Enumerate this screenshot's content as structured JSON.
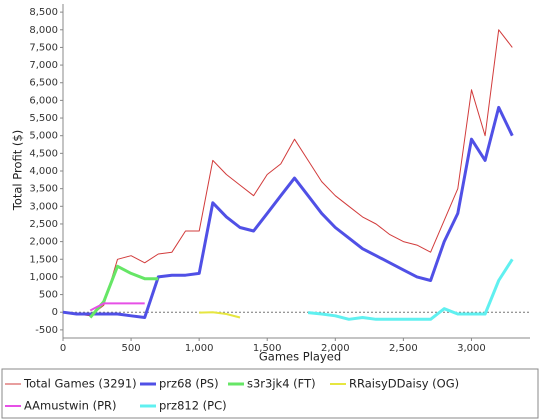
{
  "chart_data": {
    "type": "line",
    "x_label": "Games Played",
    "y_label": "Total Profit ($)",
    "x": [
      0,
      100,
      200,
      300,
      400,
      500,
      600,
      700,
      800,
      900,
      1000,
      1100,
      1200,
      1300,
      1400,
      1500,
      1600,
      1700,
      1800,
      1900,
      2000,
      2100,
      2200,
      2300,
      2400,
      2500,
      2600,
      2700,
      2800,
      2900,
      3000,
      3100,
      3200,
      3300
    ],
    "series": [
      {
        "name": "Total Games (3291)",
        "color": "#d23c3c",
        "line_width": 1,
        "values": [
          0,
          -50,
          -100,
          200,
          1500,
          1600,
          1400,
          1650,
          1700,
          2300,
          2300,
          4300,
          3900,
          3600,
          3300,
          3900,
          4200,
          4900,
          4300,
          3700,
          3300,
          3000,
          2700,
          2500,
          2200,
          2000,
          1900,
          1700,
          2600,
          3500,
          6300,
          5000,
          8000,
          7500
        ]
      },
      {
        "name": "prz68 (PS)",
        "color": "#5050e6",
        "line_width": 3,
        "values": [
          0,
          -50,
          -50,
          -50,
          -50,
          -100,
          -150,
          1000,
          1050,
          1050,
          1100,
          3100,
          2700,
          2400,
          2300,
          2800,
          3300,
          3800,
          3300,
          2800,
          2400,
          2100,
          1800,
          1600,
          1400,
          1200,
          1000,
          900,
          2000,
          2800,
          4900,
          4300,
          5800,
          5000
        ]
      },
      {
        "name": "s3r3jk4 (FT)",
        "color": "#66e666",
        "line_width": 3,
        "values": [
          null,
          null,
          -150,
          300,
          1300,
          1100,
          950,
          950,
          null,
          null,
          null,
          null,
          null,
          null,
          null,
          null,
          null,
          null,
          null,
          null,
          null,
          null,
          null,
          null,
          null,
          null,
          null,
          null,
          null,
          null,
          null,
          null,
          null,
          null
        ]
      },
      {
        "name": "RRaisyDDaisy (OG)",
        "color": "#e6e640",
        "line_width": 2,
        "values": [
          null,
          null,
          null,
          null,
          null,
          null,
          null,
          null,
          null,
          null,
          -10,
          0,
          -50,
          -150,
          null,
          null,
          null,
          null,
          null,
          null,
          null,
          null,
          null,
          null,
          null,
          null,
          null,
          null,
          null,
          null,
          null,
          null,
          null,
          null
        ]
      },
      {
        "name": "AAmustwin (PR)",
        "color": "#e650e6",
        "line_width": 2,
        "values": [
          null,
          null,
          50,
          250,
          250,
          250,
          250,
          null,
          null,
          null,
          null,
          null,
          null,
          null,
          null,
          null,
          null,
          null,
          null,
          null,
          null,
          null,
          null,
          null,
          null,
          null,
          null,
          null,
          null,
          null,
          null,
          null,
          null,
          null
        ]
      },
      {
        "name": "prz812 (PC)",
        "color": "#60f0f0",
        "line_width": 3,
        "values": [
          null,
          null,
          null,
          null,
          null,
          null,
          null,
          null,
          null,
          null,
          null,
          null,
          null,
          null,
          null,
          null,
          null,
          null,
          -10,
          -50,
          -100,
          -200,
          -150,
          -200,
          -200,
          -200,
          -200,
          -200,
          100,
          -50,
          -50,
          -50,
          900,
          1500
        ]
      }
    ],
    "xlim": [
      0,
      3430
    ],
    "ylim": [
      -730,
      8730
    ],
    "xticks": [
      0,
      500,
      {
        "value": 1000,
        "label": "1,000"
      },
      {
        "value": 1500,
        "label": "1,500"
      },
      {
        "value": 2000,
        "label": "2,000"
      },
      {
        "value": 2500,
        "label": "2,500"
      },
      {
        "value": 3000,
        "label": "3,000"
      }
    ],
    "yticks": [
      -500,
      0,
      500,
      {
        "value": 1000,
        "label": "1,000"
      },
      {
        "value": 1500,
        "label": "1,500"
      },
      {
        "value": 2000,
        "label": "2,000"
      },
      {
        "value": 2500,
        "label": "2,500"
      },
      {
        "value": 3000,
        "label": "3,000"
      },
      {
        "value": 3500,
        "label": "3,500"
      },
      {
        "value": 4000,
        "label": "4,000"
      },
      {
        "value": 4500,
        "label": "4,500"
      },
      {
        "value": 5000,
        "label": "5,000"
      },
      {
        "value": 5500,
        "label": "5,500"
      },
      {
        "value": 6000,
        "label": "6,000"
      },
      {
        "value": 6500,
        "label": "6,500"
      },
      {
        "value": 7000,
        "label": "7,000"
      },
      {
        "value": 7500,
        "label": "7,500"
      },
      {
        "value": 8000,
        "label": "8,000"
      },
      {
        "value": 8500,
        "label": "8,500"
      }
    ]
  }
}
